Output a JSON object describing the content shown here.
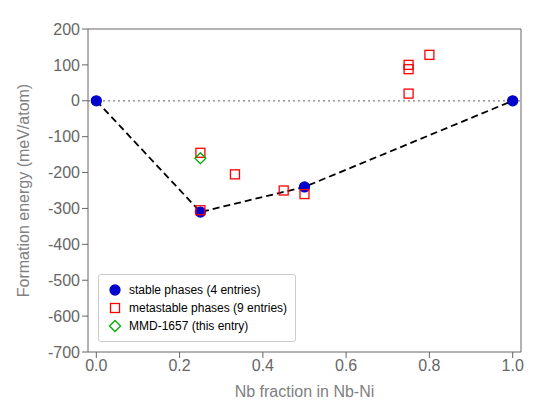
{
  "chart_data": {
    "type": "scatter",
    "xlabel": "Nb fraction in Nb-Ni",
    "ylabel": "Formation energy (meV/atom)",
    "xlim": [
      -0.02,
      1.02
    ],
    "ylim": [
      -700,
      200
    ],
    "xticks": [
      {
        "value": 0.0,
        "label": "0.0"
      },
      0.2,
      0.4,
      0.6,
      0.8,
      {
        "value": 1.0,
        "label": "1.0"
      }
    ],
    "yticks": [
      -700,
      -600,
      -500,
      -400,
      -300,
      -200,
      -100,
      0,
      100,
      200
    ],
    "grid": false,
    "legend": "lower left",
    "series": [
      {
        "type": "hline",
        "color": "gray",
        "line_style": "dotted",
        "values": [
          0
        ]
      },
      {
        "type": "line",
        "color": "black",
        "line_style": "dashed",
        "x": [
          0.0,
          0.25,
          0.5,
          1.0
        ],
        "values": [
          0.0,
          -310.0,
          -240.0,
          0.0
        ]
      },
      {
        "type": "scatter",
        "name": "stable phases (4 entries)",
        "color": "#0000cc",
        "marker": "circle",
        "x": [
          0.0,
          0.25,
          0.5,
          1.0
        ],
        "values": [
          0.0,
          -310.0,
          -240.0,
          0.0
        ]
      },
      {
        "type": "scatter",
        "name": "metastable phases (9 entries)",
        "color": "#ff0000",
        "marker": "open-square",
        "x": [
          0.25,
          0.25,
          0.333,
          0.45,
          0.5,
          0.75,
          0.75,
          0.75,
          0.8
        ],
        "values": [
          -145.0,
          -305.0,
          -205.0,
          -250.0,
          -260.0,
          20.0,
          88.0,
          100.0,
          128.0
        ]
      },
      {
        "type": "scatter",
        "name": "MMD-1657 (this entry)",
        "color": "#00aa00",
        "marker": "open-diamond",
        "x": [
          0.25
        ],
        "values": [
          -160.0
        ]
      }
    ]
  }
}
